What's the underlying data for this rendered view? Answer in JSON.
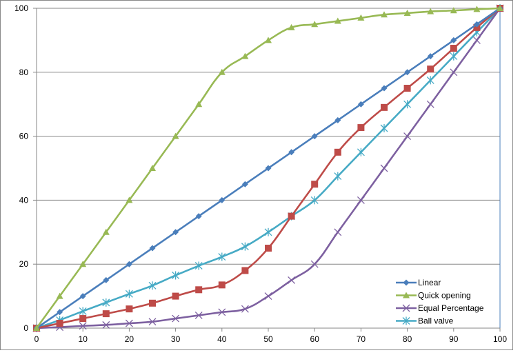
{
  "chart_data": {
    "type": "line",
    "title": "",
    "xlabel": "",
    "ylabel": "",
    "xlim": [
      0,
      100
    ],
    "ylim": [
      0,
      100
    ],
    "grid": "horizontal",
    "legend_position": "bottom-right",
    "x": [
      0,
      5,
      10,
      15,
      20,
      25,
      30,
      35,
      40,
      45,
      50,
      55,
      60,
      65,
      70,
      75,
      80,
      85,
      90,
      95,
      100
    ],
    "x_ticks": [
      0,
      10,
      20,
      30,
      40,
      50,
      60,
      70,
      80,
      90,
      100
    ],
    "y_ticks": [
      0,
      20,
      40,
      60,
      80,
      100
    ],
    "series": [
      {
        "name": "Linear",
        "color": "#4a7ebb",
        "marker": "diamond",
        "legend": true,
        "values": [
          0,
          5,
          10,
          15,
          20,
          25,
          30,
          35,
          40,
          45,
          50,
          55,
          60,
          65,
          70,
          75,
          80,
          85,
          90,
          95,
          100
        ]
      },
      {
        "name": "Quick opening",
        "color": "#98b954",
        "marker": "triangle",
        "legend": true,
        "values": [
          0,
          10,
          20,
          30,
          40,
          50,
          60,
          70,
          80,
          85,
          90,
          94,
          95,
          96,
          97,
          98,
          98.5,
          99,
          99.3,
          99.7,
          100
        ]
      },
      {
        "name": "",
        "color": "#be4b48",
        "marker": "square",
        "legend": false,
        "values": [
          0,
          1.5,
          3,
          4.5,
          6,
          7.8,
          10,
          12,
          13.5,
          18,
          25,
          35,
          45,
          55,
          62.7,
          69,
          75,
          81,
          87.5,
          94,
          100
        ]
      },
      {
        "name": "Equal Percentage",
        "color": "#7d60a0",
        "marker": "x",
        "legend": true,
        "values": [
          0,
          0.3,
          0.7,
          1,
          1.5,
          2,
          3,
          4,
          5,
          6,
          10,
          15,
          20,
          30,
          40,
          50,
          60,
          70,
          80,
          90,
          100
        ]
      },
      {
        "name": "Ball valve",
        "color": "#46aac5",
        "marker": "star",
        "legend": true,
        "values": [
          0,
          2.5,
          5.3,
          8,
          10.7,
          13.3,
          16.5,
          19.5,
          22.3,
          25.5,
          30,
          35,
          40,
          47.5,
          55,
          62.5,
          70,
          77.5,
          85,
          92.5,
          100
        ]
      }
    ]
  }
}
